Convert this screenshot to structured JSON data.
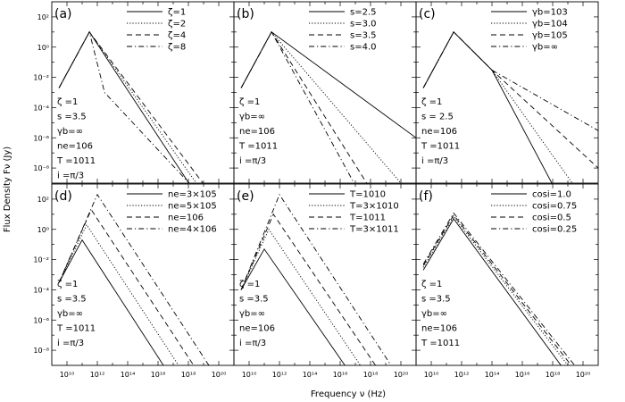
{
  "figure": {
    "xlabel": "Frequency ν (Hz)",
    "ylabel": "Flux Density Fν (Jy)"
  },
  "line_styles": {
    "solid": "",
    "dotted": "1.2,2",
    "dashed": "6,4",
    "dashdot": "6,3,1.2,3"
  },
  "chart_data": [
    {
      "type": "line",
      "panel": "(a)",
      "xscale": "log",
      "yscale": "log",
      "xlim": [
        1000000000.0,
        1e+21
      ],
      "ylim": [
        1e-09,
        1000.0
      ],
      "legend_position": "top-right",
      "series": [
        {
          "name": "ζ=1",
          "style": "solid",
          "points": [
            [
              3000000000.0,
              0.002
            ],
            [
              300000000000.0,
              10
            ],
            [
              1e+20,
              1e-12
            ]
          ]
        },
        {
          "name": "ζ=2",
          "style": "dotted",
          "points": [
            [
              3000000000.0,
              0.002
            ],
            [
              300000000000.0,
              10
            ],
            [
              1e+20,
              8e-12
            ]
          ]
        },
        {
          "name": "ζ=4",
          "style": "dashed",
          "points": [
            [
              3000000000.0,
              0.002
            ],
            [
              300000000000.0,
              10
            ],
            [
              1e+20,
              4e-11
            ]
          ]
        },
        {
          "name": "ζ=8",
          "style": "dashdot",
          "points": [
            [
              3000000000.0,
              0.002
            ],
            [
              300000000000.0,
              10
            ],
            [
              3000000000000.0,
              0.001
            ],
            [
              1e+20,
              8e-12
            ]
          ]
        }
      ],
      "legend": [
        "ζ=1",
        "ζ=2",
        "ζ=4",
        "ζ=8"
      ],
      "params": [
        "ζ =1",
        "s =3.5",
        "γb=∞",
        "ne=106",
        "T =1011",
        "i =π/3"
      ]
    },
    {
      "type": "line",
      "panel": "(b)",
      "xscale": "log",
      "yscale": "log",
      "xlim": [
        1000000000.0,
        1e+21
      ],
      "ylim": [
        1e-09,
        1000.0
      ],
      "legend_position": "top-right",
      "series": [
        {
          "name": "s=2.5",
          "style": "solid",
          "points": [
            [
              3000000000.0,
              0.002
            ],
            [
              300000000000.0,
              10
            ],
            [
              1e+21,
              1e-06
            ]
          ]
        },
        {
          "name": "s=3.0",
          "style": "dotted",
          "points": [
            [
              3000000000.0,
              0.002
            ],
            [
              300000000000.0,
              10
            ],
            [
              1e+20,
              1e-09
            ]
          ]
        },
        {
          "name": "s=3.5",
          "style": "dashed",
          "points": [
            [
              3000000000.0,
              0.002
            ],
            [
              300000000000.0,
              10
            ],
            [
              1e+19,
              1e-11
            ]
          ]
        },
        {
          "name": "s=4.0",
          "style": "dashdot",
          "points": [
            [
              3000000000.0,
              0.002
            ],
            [
              300000000000.0,
              10
            ],
            [
              1e+18,
              1e-11
            ]
          ]
        }
      ],
      "legend": [
        "s=2.5",
        "s=3.0",
        "s=3.5",
        "s=4.0"
      ],
      "params": [
        "ζ =1",
        "γb=∞",
        "ne=106",
        "T =1011",
        "i =π/3"
      ]
    },
    {
      "type": "line",
      "panel": "(c)",
      "xscale": "log",
      "yscale": "log",
      "xlim": [
        1000000000.0,
        1e+21
      ],
      "ylim": [
        1e-09,
        1000.0
      ],
      "legend_position": "top-right",
      "series": [
        {
          "name": "γb=103",
          "style": "solid",
          "points": [
            [
              3000000000.0,
              0.002
            ],
            [
              300000000000.0,
              10
            ],
            [
              100000000000000.0,
              0.03
            ],
            [
              1e+19,
              1e-11
            ]
          ]
        },
        {
          "name": "γb=104",
          "style": "dotted",
          "points": [
            [
              3000000000.0,
              0.002
            ],
            [
              300000000000.0,
              10
            ],
            [
              100000000000000.0,
              0.03
            ],
            [
              1e+20,
              1e-10
            ]
          ]
        },
        {
          "name": "γb=105",
          "style": "dashed",
          "points": [
            [
              3000000000.0,
              0.002
            ],
            [
              300000000000.0,
              10
            ],
            [
              100000000000000.0,
              0.03
            ],
            [
              1e+21,
              1e-08
            ]
          ]
        },
        {
          "name": "γb=∞",
          "style": "dashdot",
          "points": [
            [
              3000000000.0,
              0.002
            ],
            [
              300000000000.0,
              10
            ],
            [
              100000000000000.0,
              0.03
            ],
            [
              1e+21,
              3e-06
            ]
          ]
        }
      ],
      "legend": [
        "γb=103",
        "γb=104",
        "γb=105",
        "γb=∞"
      ],
      "params": [
        "ζ =1",
        "s = 2.5",
        "ne=106",
        "T =1011",
        "i =π/3"
      ]
    },
    {
      "type": "line",
      "panel": "(d)",
      "xscale": "log",
      "yscale": "log",
      "xlim": [
        1000000000.0,
        1e+21
      ],
      "ylim": [
        1e-09,
        1000.0
      ],
      "legend_position": "top-right",
      "series": [
        {
          "name": "ne=3×105",
          "style": "solid",
          "points": [
            [
              3000000000.0,
              0.0003
            ],
            [
              100000000000.0,
              0.2
            ],
            [
              1e+17,
              1e-10
            ]
          ]
        },
        {
          "name": "ne=5×105",
          "style": "dotted",
          "points": [
            [
              3000000000.0,
              0.0003
            ],
            [
              200000000000.0,
              2
            ],
            [
              1e+18,
              1e-10
            ]
          ]
        },
        {
          "name": "ne=106",
          "style": "dashed",
          "points": [
            [
              3000000000.0,
              0.0003
            ],
            [
              400000000000.0,
              20
            ],
            [
              1e+19,
              1e-10
            ]
          ]
        },
        {
          "name": "ne=4×106",
          "style": "dashdot",
          "points": [
            [
              3000000000.0,
              0.0003
            ],
            [
              1000000000000.0,
              200
            ],
            [
              1e+20,
              1e-10
            ]
          ]
        }
      ],
      "legend": [
        "ne=3×105",
        "ne=5×105",
        "ne=106",
        "ne=4×106"
      ],
      "params": [
        "ζ =1",
        "s =3.5",
        "γb=∞",
        "T =1011",
        "i =π/3"
      ]
    },
    {
      "type": "line",
      "panel": "(e)",
      "xscale": "log",
      "yscale": "log",
      "xlim": [
        1000000000.0,
        1e+21
      ],
      "ylim": [
        1e-09,
        1000.0
      ],
      "legend_position": "top-right",
      "series": [
        {
          "name": "T=1010",
          "style": "solid",
          "points": [
            [
              3000000000.0,
              0.0001
            ],
            [
              100000000000.0,
              0.05
            ],
            [
              1e+17,
              1e-10
            ]
          ]
        },
        {
          "name": "T=3×1010",
          "style": "dotted",
          "points": [
            [
              3000000000.0,
              0.0001
            ],
            [
              200000000000.0,
              1
            ],
            [
              1e+18,
              1e-10
            ]
          ]
        },
        {
          "name": "T=1011",
          "style": "dashed",
          "points": [
            [
              3000000000.0,
              0.0001
            ],
            [
              400000000000.0,
              10
            ],
            [
              1e+19,
              1e-10
            ]
          ]
        },
        {
          "name": "T=3×1011",
          "style": "dashdot",
          "points": [
            [
              3000000000.0,
              0.0001
            ],
            [
              1000000000000.0,
              200
            ],
            [
              1e+20,
              1e-10
            ]
          ]
        }
      ],
      "legend": [
        "T=1010",
        "T=3×1010",
        "T=1011",
        "T=3×1011"
      ],
      "params": [
        "ζ =1",
        "s =3.5",
        "γb=∞",
        "ne=106",
        "i =π/3"
      ]
    },
    {
      "type": "line",
      "panel": "(f)",
      "xscale": "log",
      "yscale": "log",
      "xlim": [
        1000000000.0,
        1e+21
      ],
      "ylim": [
        1e-09,
        1000.0
      ],
      "legend_position": "top-right",
      "series": [
        {
          "name": "cosi=1.0",
          "style": "solid",
          "points": [
            [
              3000000000.0,
              0.002
            ],
            [
              300000000000.0,
              5
            ],
            [
              1e+20,
              1e-11
            ]
          ]
        },
        {
          "name": "cosi=0.75",
          "style": "dotted",
          "points": [
            [
              3000000000.0,
              0.003
            ],
            [
              300000000000.0,
              7
            ],
            [
              1e+20,
              5e-11
            ]
          ]
        },
        {
          "name": "cosi=0.5",
          "style": "dashed",
          "points": [
            [
              3000000000.0,
              0.004
            ],
            [
              300000000000.0,
              9
            ],
            [
              1e+20,
              1e-10
            ]
          ]
        },
        {
          "name": "cosi=0.25",
          "style": "dashdot",
          "points": [
            [
              3000000000.0,
              0.005
            ],
            [
              300000000000.0,
              12
            ],
            [
              1e+20,
              2e-10
            ]
          ]
        }
      ],
      "legend": [
        "cosi=1.0",
        "cosi=0.75",
        "cosi=0.5",
        "cosi=0.25"
      ],
      "params": [
        "ζ =1",
        "s =3.5",
        "γb=∞",
        "ne=106",
        "T =1011"
      ]
    }
  ]
}
